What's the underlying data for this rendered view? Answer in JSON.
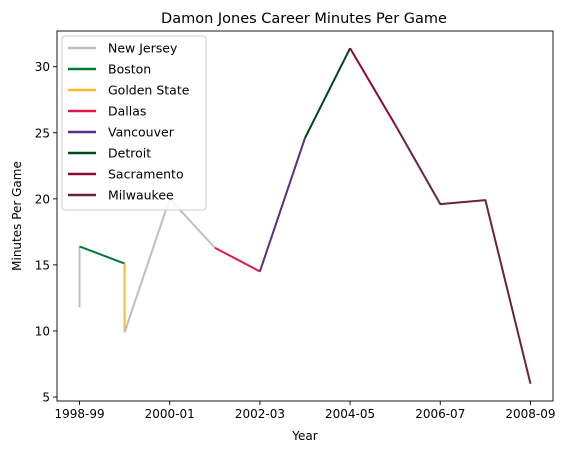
{
  "chart_data": {
    "type": "line",
    "title": "Damon Jones Career Minutes Per Game",
    "xlabel": "Year",
    "ylabel": "Minutes Per Game",
    "x_ticks": [
      {
        "x": 0,
        "label": "1998-99"
      },
      {
        "x": 2,
        "label": "2000-01"
      },
      {
        "x": 4,
        "label": "2002-03"
      },
      {
        "x": 6,
        "label": "2004-05"
      },
      {
        "x": 8,
        "label": "2006-07"
      },
      {
        "x": 10,
        "label": "2008-09"
      }
    ],
    "y_ticks": [
      5,
      10,
      15,
      20,
      25,
      30
    ],
    "xlim": [
      -0.5,
      10.5
    ],
    "ylim": [
      4.7,
      32.7
    ],
    "grid": false,
    "legend_position": "top-left",
    "series": [
      {
        "name": "New Jersey",
        "color": "#bfbfbf",
        "points": [
          [
            0,
            11.8
          ],
          [
            0,
            16.4
          ]
        ]
      },
      {
        "name": "Boston",
        "color": "#007a33",
        "points": [
          [
            0,
            16.4
          ],
          [
            1,
            15.1
          ]
        ]
      },
      {
        "name": "Golden State",
        "color": "#fdb927",
        "points": [
          [
            1,
            15.1
          ],
          [
            1,
            9.9
          ]
        ]
      },
      {
        "name": "New Jersey",
        "color": "#bfbfbf",
        "points": [
          [
            1,
            9.9
          ],
          [
            2,
            20.0
          ],
          [
            3,
            16.3
          ]
        ]
      },
      {
        "name": "Dallas",
        "color": "#e0194a",
        "points": [
          [
            3,
            16.3
          ],
          [
            4,
            14.5
          ]
        ]
      },
      {
        "name": "Vancouver",
        "color": "#5c2e85",
        "points": [
          [
            4,
            14.5
          ],
          [
            5,
            24.6
          ]
        ]
      },
      {
        "name": "Detroit",
        "color": "#00471b",
        "points": [
          [
            5,
            24.6
          ],
          [
            6,
            31.4
          ]
        ]
      },
      {
        "name": "Sacramento",
        "color": "#8a0a34",
        "points": [
          [
            6,
            31.4
          ],
          [
            7,
            25.6
          ]
        ]
      },
      {
        "name": "Milwaukee",
        "color": "#6b2338",
        "points": [
          [
            7,
            25.6
          ],
          [
            8,
            19.6
          ],
          [
            9,
            19.9
          ],
          [
            10,
            6.0
          ]
        ]
      }
    ],
    "legend": [
      {
        "name": "New Jersey",
        "color": "#bfbfbf"
      },
      {
        "name": "Boston",
        "color": "#007a33"
      },
      {
        "name": "Golden State",
        "color": "#fdb927"
      },
      {
        "name": "Dallas",
        "color": "#e0194a"
      },
      {
        "name": "Vancouver",
        "color": "#5c2e85"
      },
      {
        "name": "Detroit",
        "color": "#00471b"
      },
      {
        "name": "Sacramento",
        "color": "#8a0a34"
      },
      {
        "name": "Milwaukee",
        "color": "#6b2338"
      }
    ]
  }
}
